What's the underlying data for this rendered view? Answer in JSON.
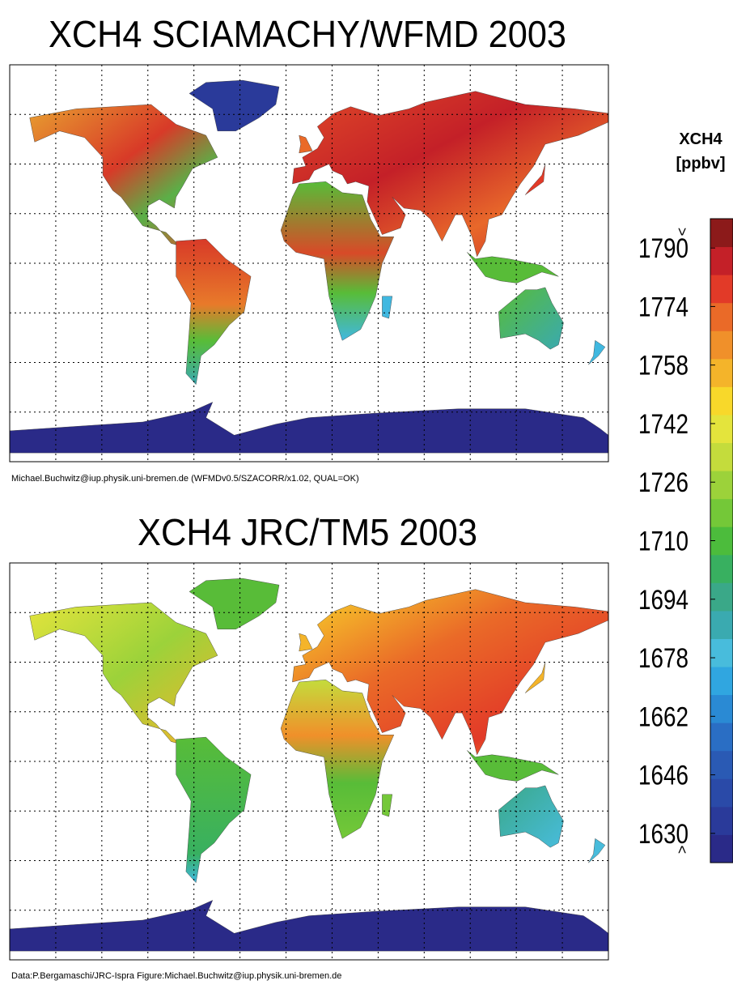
{
  "panels": [
    {
      "title": "XCH4 SCIAMACHY/WFMD 2003",
      "credit": "Michael.Buchwitz@iup.physik.uni-bremen.de (WFMDv0.5/SZACORR/x1.02, QUAL=OK)"
    },
    {
      "title": "XCH4 JRC/TM5 2003",
      "credit": "Data:P.Bergamaschi/JRC-Ispra Figure:Michael.Buchwitz@iup.physik.uni-bremen.de"
    }
  ],
  "colorbar": {
    "title": "XCH4",
    "unit": "[ppbv]",
    "range": [
      1622,
      1798
    ],
    "ticks": [
      1790,
      1774,
      1758,
      1742,
      1726,
      1710,
      1694,
      1678,
      1662,
      1646,
      1630
    ],
    "over_label": ">",
    "under_label": "<",
    "colors": [
      "#2a2a88",
      "#2a3a9a",
      "#2a4aa8",
      "#2a5ab4",
      "#2a6ec4",
      "#2a8ad4",
      "#30a6e0",
      "#48bcdc",
      "#3aaab0",
      "#3aa888",
      "#38b060",
      "#4cbc3c",
      "#74c838",
      "#9cd23a",
      "#c4dc3c",
      "#e4e43c",
      "#f8d82a",
      "#f4b42a",
      "#f0902a",
      "#ea6a28",
      "#e23a28",
      "#c42028",
      "#8c1a1a"
    ]
  }
}
